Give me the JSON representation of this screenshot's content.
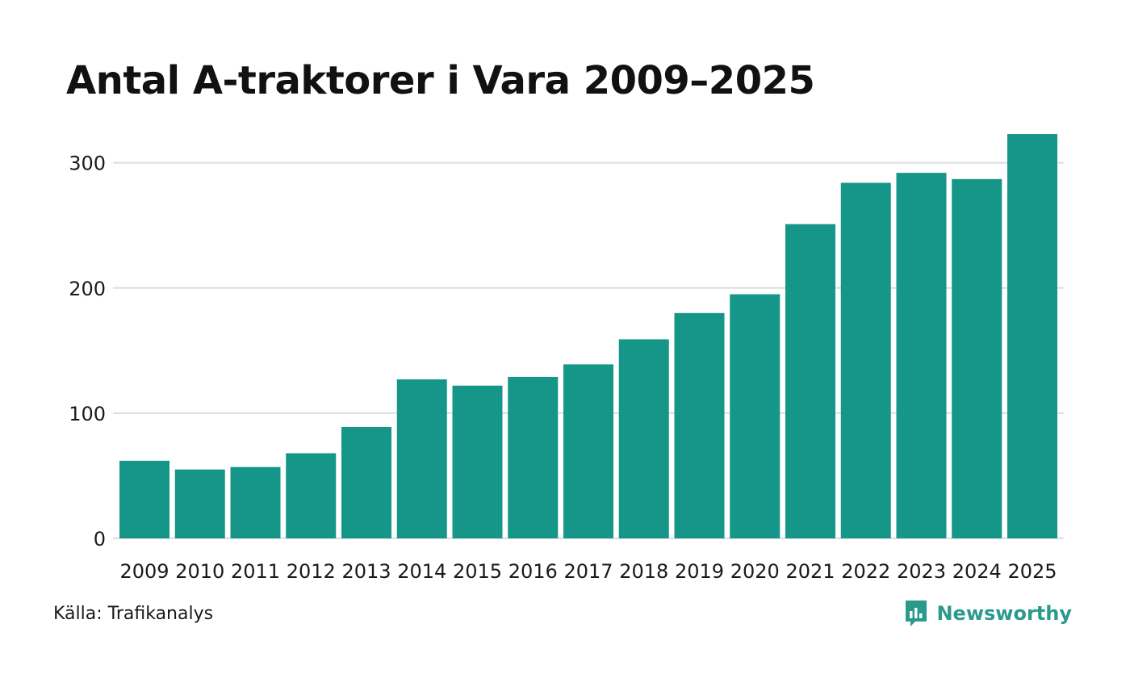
{
  "colors": {
    "bar": "#159688",
    "grid": "#dddde3",
    "brand": "#2a9a8c"
  },
  "chart_data": {
    "type": "bar",
    "title": "Antal A-traktorer i Vara 2009–2025",
    "xlabel": "",
    "ylabel": "",
    "categories": [
      "2009",
      "2010",
      "2011",
      "2012",
      "2013",
      "2014",
      "2015",
      "2016",
      "2017",
      "2018",
      "2019",
      "2020",
      "2021",
      "2022",
      "2023",
      "2024",
      "2025"
    ],
    "values": [
      62,
      55,
      57,
      68,
      89,
      127,
      122,
      129,
      139,
      159,
      180,
      195,
      251,
      284,
      292,
      287,
      323
    ],
    "yticks": [
      0,
      100,
      200,
      300
    ],
    "ylim": [
      0,
      323
    ],
    "grid": true
  },
  "footer": {
    "source": "Källa: Trafikanalys",
    "brand": "Newsworthy",
    "brand_icon": "newsworthy-logo-icon"
  }
}
